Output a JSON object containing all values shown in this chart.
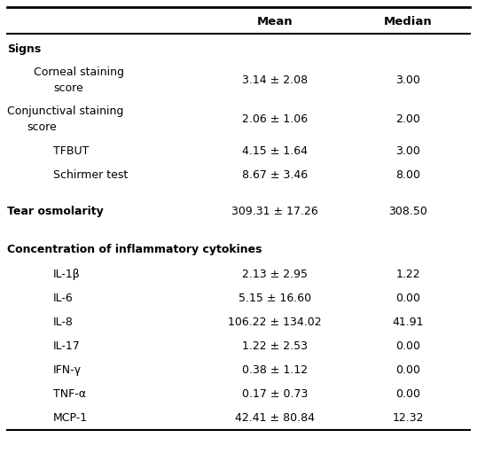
{
  "col_mean_label": "Mean",
  "col_median_label": "Median",
  "bg_color": "#ffffff",
  "font_size": 9.0,
  "rows": [
    {
      "label": "Signs",
      "mean": "",
      "median": "",
      "bold": true,
      "indent": 0,
      "spacer_after": false,
      "two_line": false
    },
    {
      "label": "Corneal staining",
      "label2": "score",
      "mean": "3.14 ± 2.08",
      "median": "3.00",
      "bold": false,
      "indent": 1,
      "spacer_after": false,
      "two_line": true
    },
    {
      "label": "Conjunctival staining",
      "label2": "score",
      "mean": "2.06 ± 1.06",
      "median": "2.00",
      "bold": false,
      "indent": 0,
      "spacer_after": false,
      "two_line": true
    },
    {
      "label": "TFBUT",
      "mean": "4.15 ± 1.64",
      "median": "3.00",
      "bold": false,
      "indent": 2,
      "spacer_after": false,
      "two_line": false
    },
    {
      "label": "Schirmer test",
      "mean": "8.67 ± 3.46",
      "median": "8.00",
      "bold": false,
      "indent": 2,
      "spacer_after": true,
      "two_line": false
    },
    {
      "label": "Tear osmolarity",
      "mean": "309.31 ± 17.26",
      "median": "308.50",
      "bold": true,
      "indent": 0,
      "spacer_after": true,
      "two_line": false
    },
    {
      "label": "Concentration of inflammatory cytokines",
      "mean": "",
      "median": "",
      "bold": true,
      "indent": 0,
      "spacer_after": false,
      "two_line": false
    },
    {
      "label": "IL-1β",
      "mean": "2.13 ± 2.95",
      "median": "1.22",
      "bold": false,
      "indent": 2,
      "spacer_after": false,
      "two_line": false
    },
    {
      "label": "IL-6",
      "mean": "5.15 ± 16.60",
      "median": "0.00",
      "bold": false,
      "indent": 2,
      "spacer_after": false,
      "two_line": false
    },
    {
      "label": "IL-8",
      "mean": "106.22 ± 134.02",
      "median": "41.91",
      "bold": false,
      "indent": 2,
      "spacer_after": false,
      "two_line": false
    },
    {
      "label": "IL-17",
      "mean": "1.22 ± 2.53",
      "median": "0.00",
      "bold": false,
      "indent": 2,
      "spacer_after": false,
      "two_line": false
    },
    {
      "label": "IFN-γ",
      "mean": "0.38 ± 1.12",
      "median": "0.00",
      "bold": false,
      "indent": 2,
      "spacer_after": false,
      "two_line": false
    },
    {
      "label": "TNF-α",
      "mean": "0.17 ± 0.73",
      "median": "0.00",
      "bold": false,
      "indent": 2,
      "spacer_after": false,
      "two_line": false
    },
    {
      "label": "MCP-1",
      "mean": "42.41 ± 80.84",
      "median": "12.32",
      "bold": false,
      "indent": 2,
      "spacer_after": false,
      "two_line": false
    }
  ]
}
